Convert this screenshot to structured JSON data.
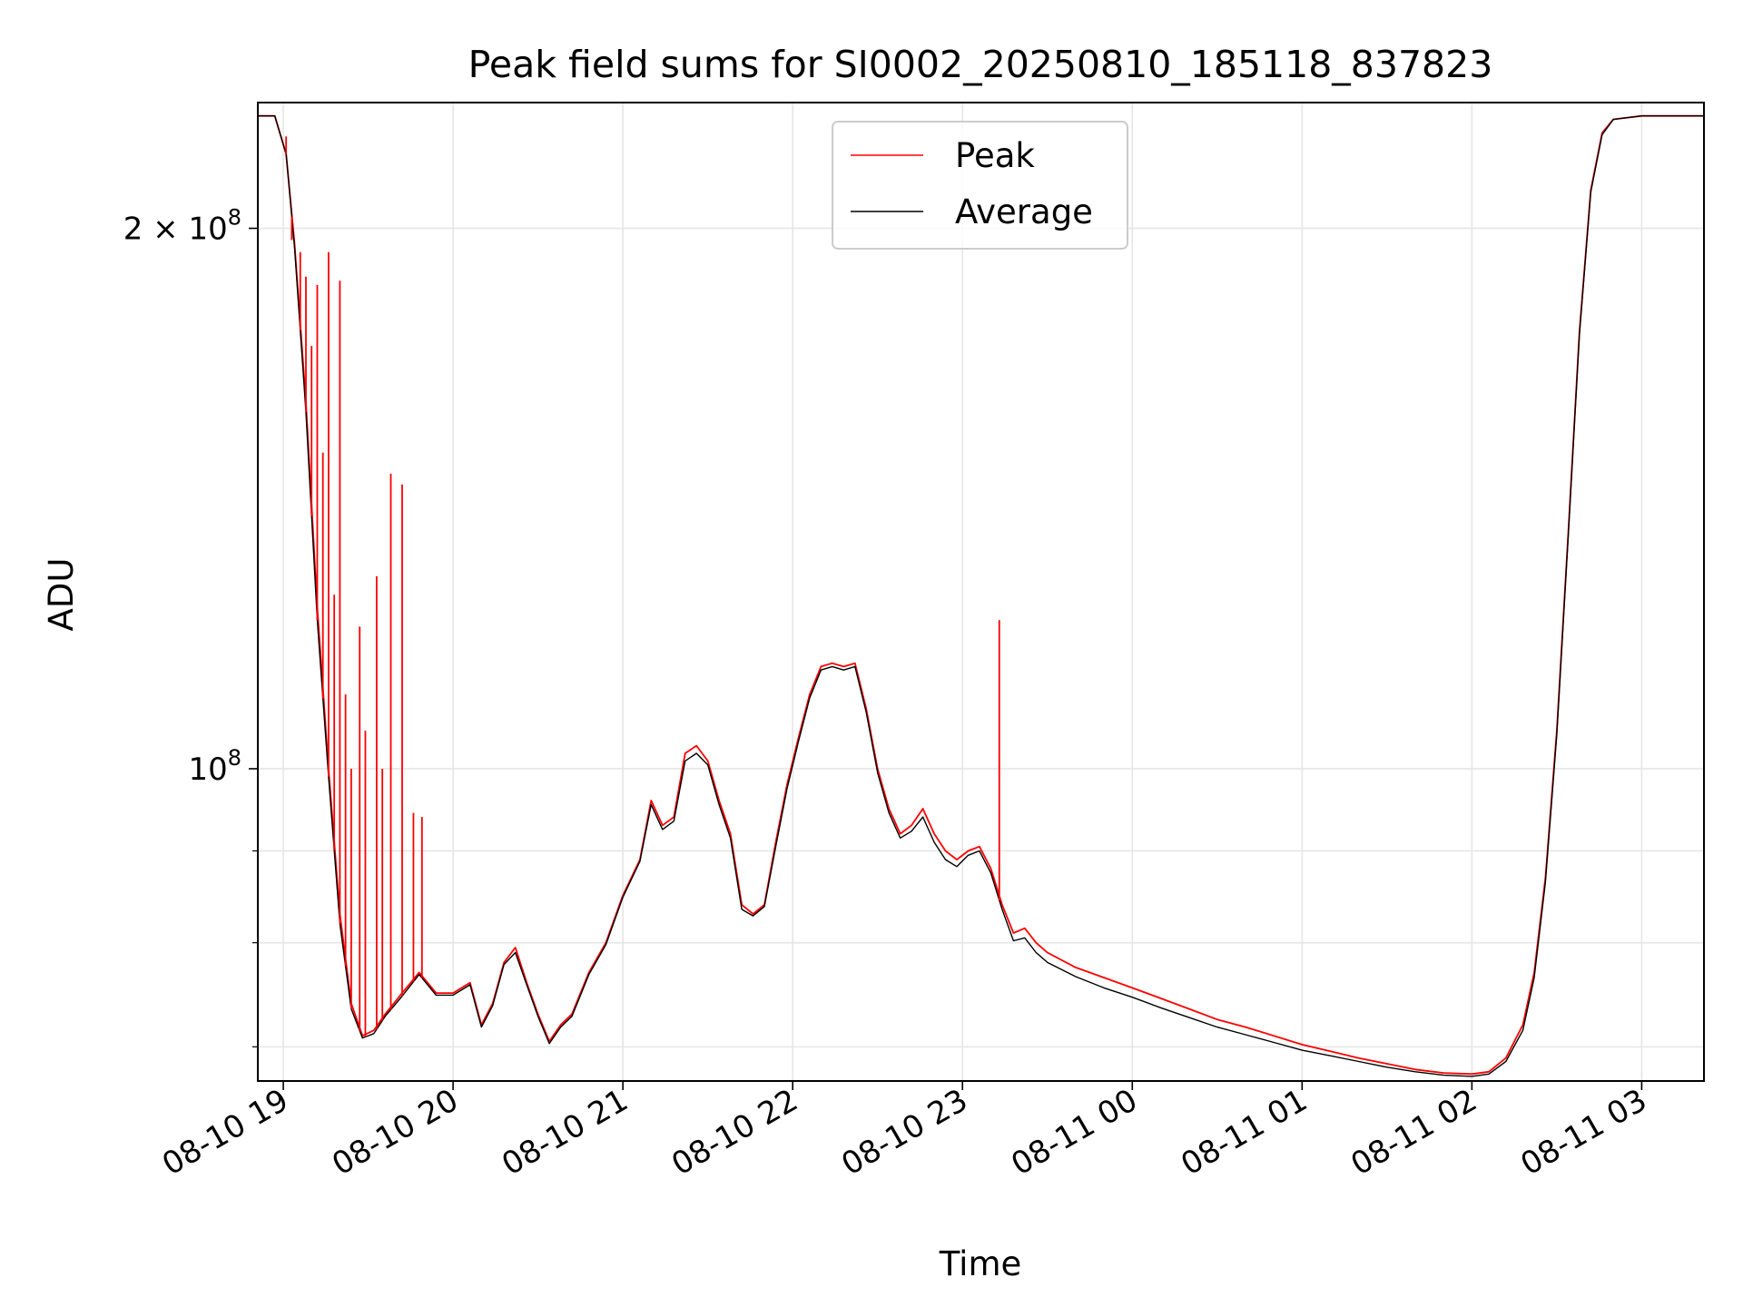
{
  "chart_data": {
    "type": "line",
    "title": "Peak field sums for SI0002_20250810_185118_837823",
    "xlabel": "Time",
    "ylabel": "ADU",
    "yscale": "log",
    "xlim": [
      "2025-08-10 18:51",
      "2025-08-11 03:22"
    ],
    "ylim": [
      67000000,
      235000000
    ],
    "grid": true,
    "legend": {
      "placement": "upper center"
    },
    "x_ticks": [
      "08-10 19",
      "08-10 20",
      "08-10 21",
      "08-10 22",
      "08-10 23",
      "08-11 00",
      "08-11 01",
      "08-11 02",
      "08-11 03"
    ],
    "y_ticks_major": [
      {
        "value": 100000000,
        "base": "10",
        "exp": "8"
      },
      {
        "value": 200000000,
        "prefix": "2 × ",
        "base": "10",
        "exp": "8"
      }
    ],
    "y_ticks_minor": [
      70000000,
      80000000,
      90000000
    ],
    "series": [
      {
        "name": "Peak",
        "color": "#ff0000",
        "points": [
          [
            "2025-08-10 18:51",
            231000000
          ],
          [
            "2025-08-10 18:57",
            231000000
          ],
          [
            "2025-08-10 19:01",
            220000000
          ],
          [
            "2025-08-10 19:04",
            196000000
          ],
          [
            "2025-08-10 19:08",
            160000000
          ],
          [
            "2025-08-10 19:12",
            123000000
          ],
          [
            "2025-08-10 19:16",
            100000000
          ],
          [
            "2025-08-10 19:20",
            83000000
          ],
          [
            "2025-08-10 19:24",
            74000000
          ],
          [
            "2025-08-10 19:28",
            71000000
          ],
          [
            "2025-08-10 19:32",
            71500000
          ],
          [
            "2025-08-10 19:36",
            73000000
          ],
          [
            "2025-08-10 19:42",
            75000000
          ],
          [
            "2025-08-10 19:48",
            77000000
          ],
          [
            "2025-08-10 19:54",
            75000000
          ],
          [
            "2025-08-10 20:00",
            75000000
          ],
          [
            "2025-08-10 20:06",
            76000000
          ],
          [
            "2025-08-10 20:10",
            72000000
          ],
          [
            "2025-08-10 20:14",
            74000000
          ],
          [
            "2025-08-10 20:18",
            78000000
          ],
          [
            "2025-08-10 20:22",
            79500000
          ],
          [
            "2025-08-10 20:26",
            76000000
          ],
          [
            "2025-08-10 20:30",
            73000000
          ],
          [
            "2025-08-10 20:34",
            70500000
          ],
          [
            "2025-08-10 20:38",
            72000000
          ],
          [
            "2025-08-10 20:42",
            73000000
          ],
          [
            "2025-08-10 20:48",
            77000000
          ],
          [
            "2025-08-10 20:54",
            80000000
          ],
          [
            "2025-08-10 21:00",
            85000000
          ],
          [
            "2025-08-10 21:06",
            89000000
          ],
          [
            "2025-08-10 21:10",
            96000000
          ],
          [
            "2025-08-10 21:14",
            93000000
          ],
          [
            "2025-08-10 21:18",
            94000000
          ],
          [
            "2025-08-10 21:22",
            102000000
          ],
          [
            "2025-08-10 21:26",
            103000000
          ],
          [
            "2025-08-10 21:30",
            101000000
          ],
          [
            "2025-08-10 21:34",
            96000000
          ],
          [
            "2025-08-10 21:38",
            92000000
          ],
          [
            "2025-08-10 21:42",
            84000000
          ],
          [
            "2025-08-10 21:46",
            83000000
          ],
          [
            "2025-08-10 21:50",
            84000000
          ],
          [
            "2025-08-10 21:54",
            91000000
          ],
          [
            "2025-08-10 21:58",
            98000000
          ],
          [
            "2025-08-10 22:02",
            104000000
          ],
          [
            "2025-08-10 22:06",
            110000000
          ],
          [
            "2025-08-10 22:10",
            114000000
          ],
          [
            "2025-08-10 22:14",
            114500000
          ],
          [
            "2025-08-10 22:18",
            114000000
          ],
          [
            "2025-08-10 22:22",
            114500000
          ],
          [
            "2025-08-10 22:26",
            108000000
          ],
          [
            "2025-08-10 22:30",
            100000000
          ],
          [
            "2025-08-10 22:34",
            95000000
          ],
          [
            "2025-08-10 22:38",
            92000000
          ],
          [
            "2025-08-10 22:42",
            93000000
          ],
          [
            "2025-08-10 22:46",
            95000000
          ],
          [
            "2025-08-10 22:50",
            92000000
          ],
          [
            "2025-08-10 22:54",
            90000000
          ],
          [
            "2025-08-10 22:58",
            89000000
          ],
          [
            "2025-08-10 23:02",
            90000000
          ],
          [
            "2025-08-10 23:06",
            90500000
          ],
          [
            "2025-08-10 23:10",
            88000000
          ],
          [
            "2025-08-10 23:14",
            84000000
          ],
          [
            "2025-08-10 23:18",
            81000000
          ],
          [
            "2025-08-10 23:22",
            81500000
          ],
          [
            "2025-08-10 23:26",
            80000000
          ],
          [
            "2025-08-10 23:30",
            79000000
          ],
          [
            "2025-08-10 23:40",
            77500000
          ],
          [
            "2025-08-10 23:50",
            76500000
          ],
          [
            "2025-08-11 00:00",
            75500000
          ],
          [
            "2025-08-11 00:10",
            74500000
          ],
          [
            "2025-08-11 00:20",
            73500000
          ],
          [
            "2025-08-11 00:30",
            72500000
          ],
          [
            "2025-08-11 00:40",
            71800000
          ],
          [
            "2025-08-11 00:50",
            71000000
          ],
          [
            "2025-08-11 01:00",
            70200000
          ],
          [
            "2025-08-11 01:10",
            69600000
          ],
          [
            "2025-08-11 01:20",
            69000000
          ],
          [
            "2025-08-11 01:30",
            68500000
          ],
          [
            "2025-08-11 01:40",
            68000000
          ],
          [
            "2025-08-11 01:50",
            67700000
          ],
          [
            "2025-08-11 02:00",
            67600000
          ],
          [
            "2025-08-11 02:06",
            67800000
          ],
          [
            "2025-08-11 02:12",
            69000000
          ],
          [
            "2025-08-11 02:18",
            72000000
          ],
          [
            "2025-08-11 02:22",
            77000000
          ],
          [
            "2025-08-11 02:26",
            87000000
          ],
          [
            "2025-08-11 02:30",
            105000000
          ],
          [
            "2025-08-11 02:34",
            135000000
          ],
          [
            "2025-08-11 02:38",
            175000000
          ],
          [
            "2025-08-11 02:42",
            210000000
          ],
          [
            "2025-08-11 02:46",
            226000000
          ],
          [
            "2025-08-11 02:50",
            230000000
          ],
          [
            "2025-08-11 03:00",
            231000000
          ],
          [
            "2025-08-11 03:22",
            231000000
          ]
        ],
        "spikes": [
          [
            "2025-08-10 19:01",
            225000000
          ],
          [
            "2025-08-10 19:03",
            197000000
          ],
          [
            "2025-08-10 19:06",
            194000000
          ],
          [
            "2025-08-10 19:08",
            188000000
          ],
          [
            "2025-08-10 19:10",
            172000000
          ],
          [
            "2025-08-10 19:12",
            186000000
          ],
          [
            "2025-08-10 19:14",
            150000000
          ],
          [
            "2025-08-10 19:16",
            194000000
          ],
          [
            "2025-08-10 19:18",
            125000000
          ],
          [
            "2025-08-10 19:20",
            187000000
          ],
          [
            "2025-08-10 19:22",
            110000000
          ],
          [
            "2025-08-10 19:24",
            100000000
          ],
          [
            "2025-08-10 19:27",
            120000000
          ],
          [
            "2025-08-10 19:29",
            105000000
          ],
          [
            "2025-08-10 19:33",
            128000000
          ],
          [
            "2025-08-10 19:35",
            100000000
          ],
          [
            "2025-08-10 19:38",
            146000000
          ],
          [
            "2025-08-10 19:42",
            144000000
          ],
          [
            "2025-08-10 19:46",
            94500000
          ],
          [
            "2025-08-10 19:49",
            94000000
          ],
          [
            "2025-08-10 23:13",
            121000000
          ]
        ]
      },
      {
        "name": "Average",
        "color": "#000000",
        "points": [
          [
            "2025-08-10 18:51",
            231000000
          ],
          [
            "2025-08-10 18:57",
            231000000
          ],
          [
            "2025-08-10 19:01",
            220000000
          ],
          [
            "2025-08-10 19:04",
            195000000
          ],
          [
            "2025-08-10 19:08",
            158000000
          ],
          [
            "2025-08-10 19:12",
            121000000
          ],
          [
            "2025-08-10 19:16",
            99000000
          ],
          [
            "2025-08-10 19:20",
            82000000
          ],
          [
            "2025-08-10 19:24",
            73500000
          ],
          [
            "2025-08-10 19:28",
            70800000
          ],
          [
            "2025-08-10 19:32",
            71200000
          ],
          [
            "2025-08-10 19:36",
            72800000
          ],
          [
            "2025-08-10 19:42",
            74700000
          ],
          [
            "2025-08-10 19:48",
            76800000
          ],
          [
            "2025-08-10 19:54",
            74800000
          ],
          [
            "2025-08-10 20:00",
            74800000
          ],
          [
            "2025-08-10 20:06",
            75800000
          ],
          [
            "2025-08-10 20:10",
            71800000
          ],
          [
            "2025-08-10 20:14",
            73800000
          ],
          [
            "2025-08-10 20:18",
            77800000
          ],
          [
            "2025-08-10 20:22",
            79000000
          ],
          [
            "2025-08-10 20:26",
            75800000
          ],
          [
            "2025-08-10 20:30",
            72800000
          ],
          [
            "2025-08-10 20:34",
            70300000
          ],
          [
            "2025-08-10 20:38",
            71800000
          ],
          [
            "2025-08-10 20:42",
            72800000
          ],
          [
            "2025-08-10 20:48",
            76800000
          ],
          [
            "2025-08-10 20:54",
            79800000
          ],
          [
            "2025-08-10 21:00",
            84800000
          ],
          [
            "2025-08-10 21:06",
            88800000
          ],
          [
            "2025-08-10 21:10",
            95500000
          ],
          [
            "2025-08-10 21:14",
            92500000
          ],
          [
            "2025-08-10 21:18",
            93500000
          ],
          [
            "2025-08-10 21:22",
            101000000
          ],
          [
            "2025-08-10 21:26",
            102000000
          ],
          [
            "2025-08-10 21:30",
            100500000
          ],
          [
            "2025-08-10 21:34",
            95500000
          ],
          [
            "2025-08-10 21:38",
            91500000
          ],
          [
            "2025-08-10 21:42",
            83500000
          ],
          [
            "2025-08-10 21:46",
            82800000
          ],
          [
            "2025-08-10 21:50",
            83800000
          ],
          [
            "2025-08-10 21:54",
            90500000
          ],
          [
            "2025-08-10 21:58",
            97500000
          ],
          [
            "2025-08-10 22:02",
            103500000
          ],
          [
            "2025-08-10 22:06",
            109500000
          ],
          [
            "2025-08-10 22:10",
            113500000
          ],
          [
            "2025-08-10 22:14",
            114000000
          ],
          [
            "2025-08-10 22:18",
            113500000
          ],
          [
            "2025-08-10 22:22",
            114000000
          ],
          [
            "2025-08-10 22:26",
            107500000
          ],
          [
            "2025-08-10 22:30",
            99500000
          ],
          [
            "2025-08-10 22:34",
            94500000
          ],
          [
            "2025-08-10 22:38",
            91500000
          ],
          [
            "2025-08-10 22:42",
            92300000
          ],
          [
            "2025-08-10 22:46",
            94000000
          ],
          [
            "2025-08-10 22:50",
            91000000
          ],
          [
            "2025-08-10 22:54",
            89000000
          ],
          [
            "2025-08-10 22:58",
            88200000
          ],
          [
            "2025-08-10 23:02",
            89500000
          ],
          [
            "2025-08-10 23:06",
            90000000
          ],
          [
            "2025-08-10 23:10",
            87500000
          ],
          [
            "2025-08-10 23:14",
            83500000
          ],
          [
            "2025-08-10 23:18",
            80200000
          ],
          [
            "2025-08-10 23:22",
            80500000
          ],
          [
            "2025-08-10 23:26",
            79000000
          ],
          [
            "2025-08-10 23:30",
            78000000
          ],
          [
            "2025-08-10 23:40",
            76600000
          ],
          [
            "2025-08-10 23:50",
            75500000
          ],
          [
            "2025-08-11 00:00",
            74600000
          ],
          [
            "2025-08-11 00:10",
            73600000
          ],
          [
            "2025-08-11 00:20",
            72700000
          ],
          [
            "2025-08-11 00:30",
            71800000
          ],
          [
            "2025-08-11 00:40",
            71100000
          ],
          [
            "2025-08-11 00:50",
            70400000
          ],
          [
            "2025-08-11 01:00",
            69700000
          ],
          [
            "2025-08-11 01:10",
            69200000
          ],
          [
            "2025-08-11 01:20",
            68700000
          ],
          [
            "2025-08-11 01:30",
            68200000
          ],
          [
            "2025-08-11 01:40",
            67800000
          ],
          [
            "2025-08-11 01:50",
            67500000
          ],
          [
            "2025-08-11 02:00",
            67400000
          ],
          [
            "2025-08-11 02:06",
            67600000
          ],
          [
            "2025-08-11 02:12",
            68700000
          ],
          [
            "2025-08-11 02:18",
            71500000
          ],
          [
            "2025-08-11 02:22",
            76500000
          ],
          [
            "2025-08-11 02:26",
            86500000
          ],
          [
            "2025-08-11 02:30",
            104500000
          ],
          [
            "2025-08-11 02:34",
            134500000
          ],
          [
            "2025-08-11 02:38",
            174500000
          ],
          [
            "2025-08-11 02:42",
            209500000
          ],
          [
            "2025-08-11 02:46",
            225500000
          ],
          [
            "2025-08-11 02:50",
            230000000
          ],
          [
            "2025-08-11 03:00",
            231000000
          ],
          [
            "2025-08-11 03:22",
            231000000
          ]
        ]
      }
    ]
  }
}
